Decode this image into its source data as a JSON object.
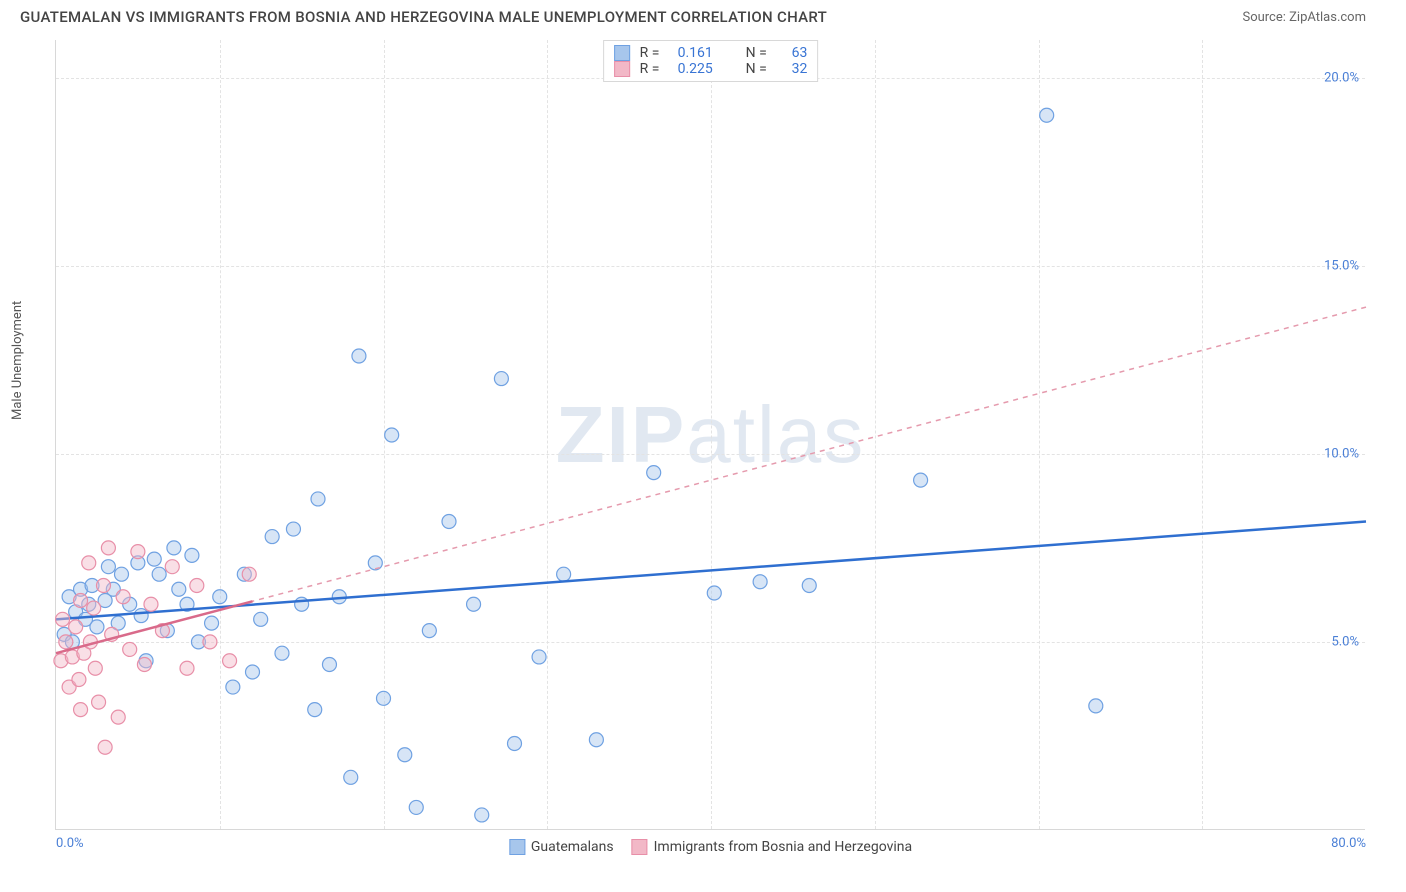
{
  "title": "GUATEMALAN VS IMMIGRANTS FROM BOSNIA AND HERZEGOVINA MALE UNEMPLOYMENT CORRELATION CHART",
  "source": "Source: ZipAtlas.com",
  "ylabel": "Male Unemployment",
  "watermark": {
    "bold": "ZIP",
    "light": "atlas"
  },
  "chart": {
    "type": "scatter",
    "xlim": [
      0,
      80
    ],
    "ylim": [
      0,
      21
    ],
    "xtick_labels": [
      "0.0%",
      "80.0%"
    ],
    "ytick_values": [
      5,
      10,
      15,
      20
    ],
    "ytick_labels": [
      "5.0%",
      "10.0%",
      "15.0%",
      "20.0%"
    ],
    "vgrid_x": [
      10,
      20,
      30,
      40,
      50,
      60,
      70
    ],
    "grid_color": "#e3e3e3",
    "background_color": "#ffffff",
    "marker_radius": 7,
    "series": [
      {
        "key": "guatemalans",
        "label": "Guatemalans",
        "color_stroke": "#6fa1e2",
        "color_fill": "#a7c6ec",
        "R": "0.161",
        "N": "63",
        "trend": {
          "x1": 0,
          "y1": 5.6,
          "x2": 80,
          "y2": 8.2,
          "dashed": false,
          "color": "#2f6fd0"
        },
        "points": [
          [
            0.5,
            5.2
          ],
          [
            0.8,
            6.2
          ],
          [
            1.2,
            5.8
          ],
          [
            1.5,
            6.4
          ],
          [
            1.0,
            5.0
          ],
          [
            1.8,
            5.6
          ],
          [
            2.2,
            6.5
          ],
          [
            2.0,
            6.0
          ],
          [
            2.5,
            5.4
          ],
          [
            3.0,
            6.1
          ],
          [
            3.2,
            7.0
          ],
          [
            3.5,
            6.4
          ],
          [
            3.8,
            5.5
          ],
          [
            4.0,
            6.8
          ],
          [
            4.5,
            6.0
          ],
          [
            5.0,
            7.1
          ],
          [
            5.2,
            5.7
          ],
          [
            5.5,
            4.5
          ],
          [
            6.0,
            7.2
          ],
          [
            6.3,
            6.8
          ],
          [
            6.8,
            5.3
          ],
          [
            7.2,
            7.5
          ],
          [
            7.5,
            6.4
          ],
          [
            8.0,
            6.0
          ],
          [
            8.3,
            7.3
          ],
          [
            8.7,
            5.0
          ],
          [
            9.5,
            5.5
          ],
          [
            10.0,
            6.2
          ],
          [
            10.8,
            3.8
          ],
          [
            11.5,
            6.8
          ],
          [
            12.0,
            4.2
          ],
          [
            12.5,
            5.6
          ],
          [
            13.2,
            7.8
          ],
          [
            13.8,
            4.7
          ],
          [
            14.5,
            8.0
          ],
          [
            15.0,
            6.0
          ],
          [
            15.8,
            3.2
          ],
          [
            16.0,
            8.8
          ],
          [
            16.7,
            4.4
          ],
          [
            17.3,
            6.2
          ],
          [
            18.0,
            1.4
          ],
          [
            18.5,
            12.6
          ],
          [
            19.5,
            7.1
          ],
          [
            20.0,
            3.5
          ],
          [
            20.5,
            10.5
          ],
          [
            21.3,
            2.0
          ],
          [
            22.0,
            0.6
          ],
          [
            22.8,
            5.3
          ],
          [
            24.0,
            8.2
          ],
          [
            25.5,
            6.0
          ],
          [
            26.0,
            0.4
          ],
          [
            27.2,
            12.0
          ],
          [
            28.0,
            2.3
          ],
          [
            29.5,
            4.6
          ],
          [
            31.0,
            6.8
          ],
          [
            33.0,
            2.4
          ],
          [
            36.5,
            9.5
          ],
          [
            40.2,
            6.3
          ],
          [
            43.0,
            6.6
          ],
          [
            46.0,
            6.5
          ],
          [
            52.8,
            9.3
          ],
          [
            60.5,
            19.0
          ],
          [
            63.5,
            3.3
          ]
        ]
      },
      {
        "key": "bosnia",
        "label": "Immigrants from Bosnia and Herzegovina",
        "color_stroke": "#e88fa8",
        "color_fill": "#f2b8c7",
        "R": "0.225",
        "N": "32",
        "trend": {
          "x1": 0,
          "y1": 4.7,
          "x2": 80,
          "y2": 13.9,
          "dashed": true,
          "color": "#e59aad"
        },
        "solid_segment": {
          "x1": 0,
          "y1": 4.7,
          "x2": 12,
          "y2": 6.08,
          "color": "#d96a8a"
        },
        "points": [
          [
            0.3,
            4.5
          ],
          [
            0.6,
            5.0
          ],
          [
            0.4,
            5.6
          ],
          [
            0.8,
            3.8
          ],
          [
            1.0,
            4.6
          ],
          [
            1.2,
            5.4
          ],
          [
            1.4,
            4.0
          ],
          [
            1.5,
            6.1
          ],
          [
            1.7,
            4.7
          ],
          [
            1.5,
            3.2
          ],
          [
            2.0,
            7.1
          ],
          [
            2.1,
            5.0
          ],
          [
            2.3,
            5.9
          ],
          [
            2.4,
            4.3
          ],
          [
            2.6,
            3.4
          ],
          [
            2.9,
            6.5
          ],
          [
            3.0,
            2.2
          ],
          [
            3.2,
            7.5
          ],
          [
            3.4,
            5.2
          ],
          [
            3.8,
            3.0
          ],
          [
            4.1,
            6.2
          ],
          [
            4.5,
            4.8
          ],
          [
            5.0,
            7.4
          ],
          [
            5.4,
            4.4
          ],
          [
            5.8,
            6.0
          ],
          [
            6.5,
            5.3
          ],
          [
            7.1,
            7.0
          ],
          [
            8.0,
            4.3
          ],
          [
            8.6,
            6.5
          ],
          [
            9.4,
            5.0
          ],
          [
            10.6,
            4.5
          ],
          [
            11.8,
            6.8
          ]
        ]
      }
    ]
  },
  "colors": {
    "axis_label": "#4a7fd6",
    "title_text": "#444444",
    "source_text": "#666666"
  }
}
